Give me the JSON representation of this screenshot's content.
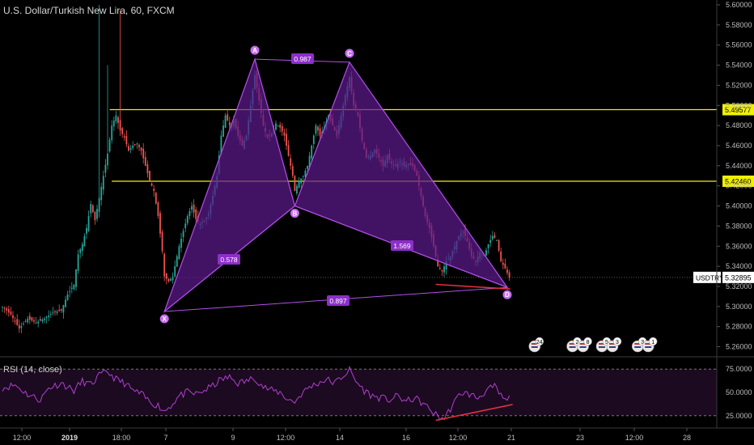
{
  "header": {
    "symbol_title": "U.S. Dollar/Turkish New Lira, 60, FXCM"
  },
  "rsi_panel": {
    "title": "RSI (14, close)",
    "levels": [
      "75.0000",
      "50.0000",
      "25.0000"
    ]
  },
  "colors": {
    "background": "#000000",
    "up_candle": "#26a69a",
    "down_candle": "#ef5350",
    "pattern_fill": "#5b1a8a",
    "pattern_line": "#b44fe8",
    "level_line": "#f0f000",
    "rsi_line": "#b040d0",
    "rsi_band": "#1c0a20",
    "divergence_line": "#e03040"
  },
  "chart_data": {
    "type": "candlestick",
    "y_axis": {
      "min": 5.254,
      "max": 5.6,
      "ticks": [
        "5.60000",
        "5.58000",
        "5.56000",
        "5.54000",
        "5.52000",
        "5.50000",
        "5.48000",
        "5.46000",
        "5.44000",
        "5.42000",
        "5.40000",
        "5.38000",
        "5.36000",
        "5.34000",
        "5.32000",
        "5.30000",
        "5.28000",
        "5.26000"
      ]
    },
    "x_axis": {
      "ticks": [
        "12:00",
        "2019",
        "18:00",
        "7",
        "9",
        "12:00",
        "14",
        "16",
        "12:00",
        "21",
        "23",
        "12:00",
        "28"
      ]
    },
    "price_labels": [
      {
        "text": "5.49577",
        "value": 5.49577,
        "style": "yellow"
      },
      {
        "text": "5.42460",
        "value": 5.4246,
        "style": "yellow"
      },
      {
        "text": "USDTRY",
        "value": 5.32895,
        "style": "name"
      },
      {
        "text": "5.32895",
        "value": 5.32895,
        "style": "current"
      }
    ],
    "horizontal_levels": [
      {
        "value": 5.49577,
        "from_bar": 51
      },
      {
        "value": 5.4246,
        "from_bar": 52
      }
    ],
    "harmonic_pattern": {
      "points": [
        {
          "label": "X",
          "bar": 77,
          "value": 5.295
        },
        {
          "label": "A",
          "bar": 120,
          "value": 5.546
        },
        {
          "label": "B",
          "bar": 139,
          "value": 5.4
        },
        {
          "label": "C",
          "bar": 165,
          "value": 5.543
        },
        {
          "label": "D",
          "bar": 240,
          "value": 5.319
        }
      ],
      "ratios": [
        {
          "text": "0.578",
          "between": [
            "X",
            "B"
          ]
        },
        {
          "text": "0.987",
          "between": [
            "A",
            "C"
          ]
        },
        {
          "text": "1.569",
          "between": [
            "B",
            "D"
          ]
        },
        {
          "text": "0.897",
          "between": [
            "X",
            "D"
          ]
        }
      ]
    },
    "event_markers": [
      {
        "text": "24",
        "bar": 253
      },
      {
        "text": "2",
        "bar": 271
      },
      {
        "text": "8",
        "bar": 276
      },
      {
        "text": "5",
        "bar": 285
      },
      {
        "text": "3",
        "bar": 290
      },
      {
        "text": "3",
        "bar": 302
      },
      {
        "text": "1",
        "bar": 307
      }
    ],
    "candles": {
      "count": 242,
      "anchors": [
        [
          0,
          5.3
        ],
        [
          4,
          5.292
        ],
        [
          8,
          5.278
        ],
        [
          12,
          5.288
        ],
        [
          16,
          5.284
        ],
        [
          20,
          5.288
        ],
        [
          24,
          5.294
        ],
        [
          28,
          5.296
        ],
        [
          31,
          5.312
        ],
        [
          34,
          5.322
        ],
        [
          36,
          5.352
        ],
        [
          38,
          5.362
        ],
        [
          40,
          5.378
        ],
        [
          42,
          5.402
        ],
        [
          44,
          5.386
        ],
        [
          46,
          5.408
        ],
        [
          48,
          5.43
        ],
        [
          50,
          5.452
        ],
        [
          52,
          5.48
        ],
        [
          54,
          5.49
        ],
        [
          56,
          5.475
        ],
        [
          58,
          5.468
        ],
        [
          60,
          5.455
        ],
        [
          62,
          5.46
        ],
        [
          64,
          5.462
        ],
        [
          66,
          5.455
        ],
        [
          68,
          5.44
        ],
        [
          70,
          5.425
        ],
        [
          72,
          5.415
        ],
        [
          74,
          5.39
        ],
        [
          76,
          5.355
        ],
        [
          77,
          5.33
        ],
        [
          79,
          5.325
        ],
        [
          81,
          5.33
        ],
        [
          84,
          5.36
        ],
        [
          86,
          5.375
        ],
        [
          88,
          5.39
        ],
        [
          90,
          5.4
        ],
        [
          92,
          5.387
        ],
        [
          94,
          5.382
        ],
        [
          96,
          5.385
        ],
        [
          98,
          5.392
        ],
        [
          100,
          5.41
        ],
        [
          102,
          5.43
        ],
        [
          104,
          5.47
        ],
        [
          106,
          5.49
        ],
        [
          108,
          5.48
        ],
        [
          110,
          5.485
        ],
        [
          112,
          5.47
        ],
        [
          114,
          5.46
        ],
        [
          116,
          5.47
        ],
        [
          118,
          5.5
        ],
        [
          120,
          5.53
        ],
        [
          122,
          5.505
        ],
        [
          124,
          5.48
        ],
        [
          126,
          5.468
        ],
        [
          128,
          5.472
        ],
        [
          130,
          5.482
        ],
        [
          132,
          5.478
        ],
        [
          134,
          5.47
        ],
        [
          136,
          5.45
        ],
        [
          138,
          5.43
        ],
        [
          139,
          5.415
        ],
        [
          141,
          5.425
        ],
        [
          143,
          5.43
        ],
        [
          145,
          5.44
        ],
        [
          147,
          5.46
        ],
        [
          149,
          5.48
        ],
        [
          151,
          5.47
        ],
        [
          153,
          5.478
        ],
        [
          155,
          5.49
        ],
        [
          157,
          5.48
        ],
        [
          159,
          5.47
        ],
        [
          161,
          5.49
        ],
        [
          163,
          5.51
        ],
        [
          165,
          5.528
        ],
        [
          167,
          5.5
        ],
        [
          169,
          5.49
        ],
        [
          171,
          5.465
        ],
        [
          173,
          5.448
        ],
        [
          175,
          5.45
        ],
        [
          177,
          5.456
        ],
        [
          179,
          5.448
        ],
        [
          181,
          5.44
        ],
        [
          183,
          5.45
        ],
        [
          185,
          5.442
        ],
        [
          187,
          5.44
        ],
        [
          189,
          5.444
        ],
        [
          191,
          5.44
        ],
        [
          193,
          5.442
        ],
        [
          195,
          5.44
        ],
        [
          197,
          5.43
        ],
        [
          199,
          5.41
        ],
        [
          201,
          5.39
        ],
        [
          203,
          5.378
        ],
        [
          205,
          5.36
        ],
        [
          207,
          5.34
        ],
        [
          209,
          5.335
        ],
        [
          211,
          5.345
        ],
        [
          213,
          5.35
        ],
        [
          215,
          5.36
        ],
        [
          217,
          5.37
        ],
        [
          219,
          5.375
        ],
        [
          221,
          5.365
        ],
        [
          223,
          5.35
        ],
        [
          225,
          5.345
        ],
        [
          227,
          5.354
        ],
        [
          229,
          5.35
        ],
        [
          231,
          5.362
        ],
        [
          233,
          5.37
        ],
        [
          235,
          5.366
        ],
        [
          237,
          5.345
        ],
        [
          239,
          5.338
        ],
        [
          241,
          5.329
        ]
      ]
    },
    "rsi_series": {
      "scale": [
        17,
        83
      ],
      "anchors": [
        [
          0,
          55
        ],
        [
          6,
          58
        ],
        [
          12,
          48
        ],
        [
          18,
          42
        ],
        [
          22,
          55
        ],
        [
          28,
          60
        ],
        [
          34,
          52
        ],
        [
          38,
          62
        ],
        [
          42,
          58
        ],
        [
          46,
          68
        ],
        [
          50,
          72
        ],
        [
          54,
          64
        ],
        [
          58,
          60
        ],
        [
          62,
          52
        ],
        [
          66,
          48
        ],
        [
          70,
          40
        ],
        [
          74,
          36
        ],
        [
          77,
          30
        ],
        [
          80,
          36
        ],
        [
          84,
          46
        ],
        [
          88,
          50
        ],
        [
          92,
          48
        ],
        [
          96,
          52
        ],
        [
          100,
          57
        ],
        [
          104,
          64
        ],
        [
          108,
          66
        ],
        [
          112,
          60
        ],
        [
          116,
          62
        ],
        [
          120,
          66
        ],
        [
          124,
          56
        ],
        [
          128,
          52
        ],
        [
          132,
          50
        ],
        [
          136,
          42
        ],
        [
          139,
          40
        ],
        [
          142,
          48
        ],
        [
          146,
          56
        ],
        [
          150,
          60
        ],
        [
          154,
          64
        ],
        [
          158,
          60
        ],
        [
          162,
          68
        ],
        [
          165,
          74
        ],
        [
          168,
          62
        ],
        [
          172,
          52
        ],
        [
          176,
          46
        ],
        [
          180,
          44
        ],
        [
          184,
          42
        ],
        [
          188,
          46
        ],
        [
          192,
          40
        ],
        [
          196,
          44
        ],
        [
          200,
          38
        ],
        [
          204,
          30
        ],
        [
          207,
          24
        ],
        [
          210,
          22
        ],
        [
          214,
          36
        ],
        [
          218,
          50
        ],
        [
          222,
          48
        ],
        [
          226,
          44
        ],
        [
          230,
          52
        ],
        [
          234,
          56
        ],
        [
          237,
          46
        ],
        [
          240,
          40
        ],
        [
          241,
          44
        ]
      ]
    },
    "rsi_divergence": {
      "from": {
        "bar": 206,
        "value": 20
      },
      "to": {
        "bar": 241,
        "value": 37
      }
    },
    "price_divergence": {
      "from": {
        "bar": 206,
        "value": 5.322
      },
      "to": {
        "bar": 241,
        "value": 5.319
      }
    }
  }
}
